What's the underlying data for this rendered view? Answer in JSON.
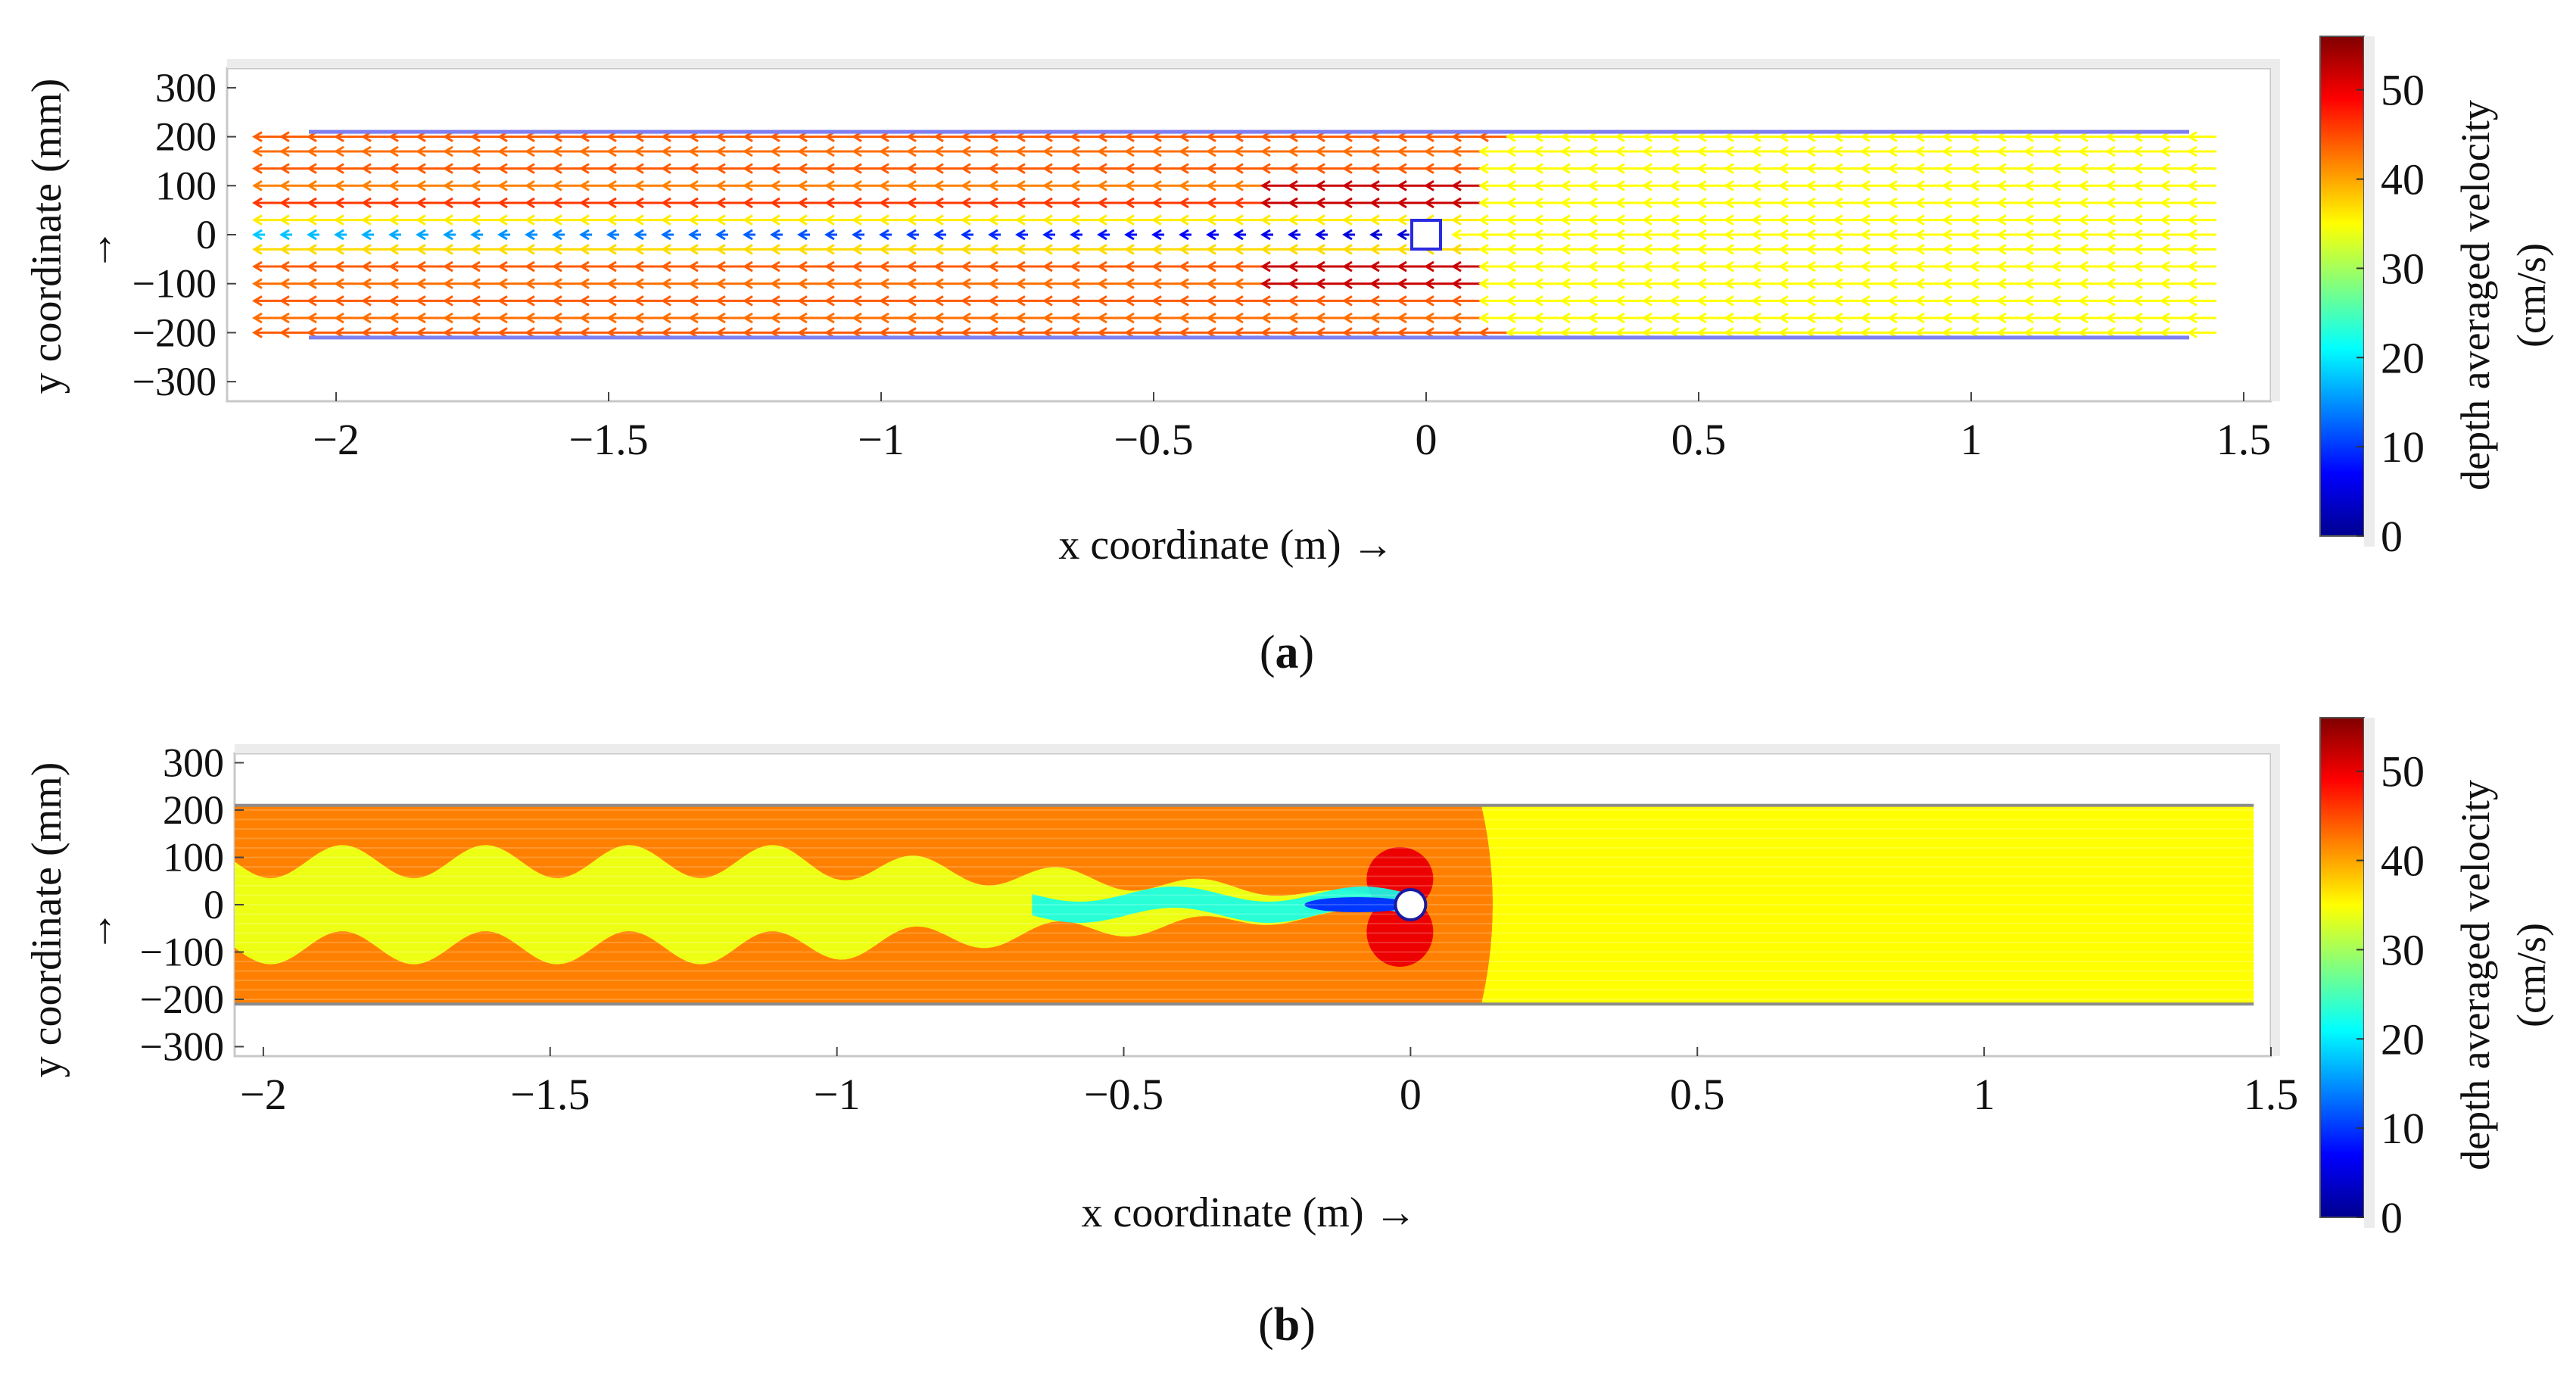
{
  "colormap": [
    "#00008f",
    "#0000ff",
    "#0080ff",
    "#00ffff",
    "#80ff80",
    "#ffff00",
    "#ff8000",
    "#ff0000",
    "#800000"
  ],
  "chart_data": [
    {
      "type": "vector-field",
      "label": "(a)",
      "label_letter": "a",
      "xlabel": "x coordinate (m) →",
      "ylabel": "y coordinate (mm)",
      "ylabel_arrow": "→",
      "xlim": [
        -2.2,
        1.55
      ],
      "ylim": [
        -340,
        340
      ],
      "xticks": [
        -2,
        -1.5,
        -1,
        -0.5,
        0,
        0.5,
        1,
        1.5
      ],
      "xtick_labels": [
        "−2",
        "−1.5",
        "−1",
        "−0.5",
        "0",
        "0.5",
        "1",
        "1.5"
      ],
      "yticks": [
        300,
        200,
        100,
        0,
        -100,
        -200,
        -300
      ],
      "ytick_labels": [
        "300",
        "200",
        "100",
        "0",
        "−100",
        "−200",
        "−300"
      ],
      "channel_x": [
        -2.05,
        1.4
      ],
      "channel_walls_y": [
        210,
        -210
      ],
      "obstacle": {
        "shape": "square",
        "x": 0,
        "y": 0
      },
      "flow_direction": "negative x",
      "field": {
        "x_start": -2.15,
        "x_end": 1.4,
        "x_step": 0.05,
        "rows": [
          {
            "y": 200,
            "upstream_velocity": 44,
            "downstream_velocity": 35,
            "switch_x": 0.15
          },
          {
            "y": 170,
            "upstream_velocity": 43,
            "downstream_velocity": 35,
            "switch_x": 0.1
          },
          {
            "y": 135,
            "upstream_velocity": 44,
            "downstream_velocity": 35,
            "switch_x": 0.1
          },
          {
            "y": 100,
            "upstream_velocity": 42,
            "downstream_velocity": 35,
            "switch_x": 0.1
          },
          {
            "y": 65,
            "upstream_velocity": 46,
            "downstream_velocity": 35,
            "switch_x": 0.1
          },
          {
            "y": 30,
            "upstream_velocity": 36,
            "downstream_velocity": 35,
            "switch_x": 0.1
          },
          {
            "y": 0,
            "upstream_velocity": 18,
            "downstream_velocity": 35,
            "switch_x": 0.05
          },
          {
            "y": -30,
            "upstream_velocity": 37,
            "downstream_velocity": 35,
            "switch_x": 0.1
          },
          {
            "y": -65,
            "upstream_velocity": 44,
            "downstream_velocity": 35,
            "switch_x": 0.1
          },
          {
            "y": -100,
            "upstream_velocity": 43,
            "downstream_velocity": 35,
            "switch_x": 0.1
          },
          {
            "y": -135,
            "upstream_velocity": 44,
            "downstream_velocity": 35,
            "switch_x": 0.1
          },
          {
            "y": -170,
            "upstream_velocity": 43,
            "downstream_velocity": 35,
            "switch_x": 0.1
          },
          {
            "y": -200,
            "upstream_velocity": 44,
            "downstream_velocity": 35,
            "switch_x": 0.15
          }
        ]
      },
      "colorbar": {
        "label": "depth averaged velocity",
        "unit": "(cm/s)",
        "range": [
          0,
          56
        ],
        "ticks": [
          0,
          10,
          20,
          30,
          40,
          50
        ],
        "tick_labels": [
          "0",
          "10",
          "20",
          "30",
          "40",
          "50"
        ]
      }
    },
    {
      "type": "heatmap",
      "label": "(b)",
      "label_letter": "b",
      "xlabel": "x coordinate (m) →",
      "ylabel": "y coordinate (mm)",
      "ylabel_arrow": "→",
      "xlim": [
        -2.05,
        1.5
      ],
      "ylim": [
        -320,
        320
      ],
      "xticks": [
        -2,
        -1.5,
        -1,
        -0.5,
        0,
        0.5,
        1,
        1.5
      ],
      "xtick_labels": [
        "−2",
        "−1.5",
        "−1",
        "−0.5",
        "0",
        "0.5",
        "1",
        "1.5"
      ],
      "yticks": [
        300,
        200,
        100,
        0,
        -100,
        -200,
        -300
      ],
      "ytick_labels": [
        "300",
        "200",
        "100",
        "0",
        "−100",
        "−200",
        "−300"
      ],
      "channel_x": [
        -2.05,
        1.47
      ],
      "channel_walls_y": [
        210,
        -210
      ],
      "obstacle": {
        "shape": "circle",
        "x": 0,
        "y": 0
      },
      "regions": {
        "upstream_velocity": 42,
        "downstream_velocity": 35,
        "boundary_x": 0.15,
        "wake_velocity": 34,
        "wake_amplitude_mm": 70,
        "wake_wavelength_m": 0.25,
        "core_velocity": 16,
        "acceleration_zone_velocity": 50
      },
      "colorbar": {
        "label": "depth averaged velocity",
        "unit": "(cm/s)",
        "range": [
          0,
          56
        ],
        "ticks": [
          0,
          10,
          20,
          30,
          40,
          50
        ],
        "tick_labels": [
          "0",
          "10",
          "20",
          "30",
          "40",
          "50"
        ]
      }
    }
  ]
}
